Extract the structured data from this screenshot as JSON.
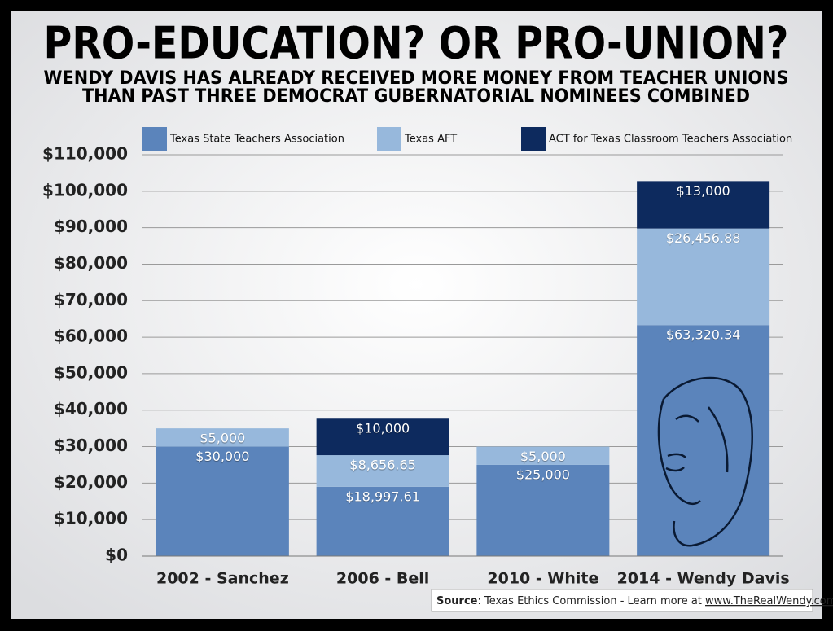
{
  "chart_data": {
    "type": "stacked_bar",
    "title": "PRO-EDUCATION? OR PRO-UNION?",
    "subtitle": [
      "WENDY DAVIS HAS ALREADY RECEIVED MORE MONEY FROM TEACHER UNIONS",
      "THAN PAST THREE DEMOCRAT GUBERNATORIAL NOMINEES COMBINED"
    ],
    "categories": [
      "2002 - Sanchez",
      "2006 - Bell",
      "2010 - White",
      "2014 - Wendy Davis"
    ],
    "series": [
      {
        "name": "Texas State Teachers Association",
        "color": "#5b84bb",
        "values": [
          30000,
          18997.61,
          25000,
          63320.34
        ],
        "value_labels": [
          "$30,000",
          "$18,997.61",
          "$25,000",
          "$63,320.34"
        ]
      },
      {
        "name": "Texas AFT",
        "color": "#97b8dc",
        "values": [
          5000,
          8656.65,
          5000,
          26456.88
        ],
        "value_labels": [
          "$5,000",
          "$8,656.65",
          "$5,000",
          "$26,456.88"
        ]
      },
      {
        "name": "ACT for Texas Classroom Teachers Association",
        "color": "#0d2a5e",
        "values": [
          null,
          10000,
          null,
          13000
        ],
        "value_labels": [
          null,
          "$10,000",
          null,
          "$13,000"
        ]
      }
    ],
    "ylim": [
      0,
      110000
    ],
    "yticks": [
      {
        "value": 0,
        "label": "$0"
      },
      {
        "value": 10000,
        "label": "$10,000"
      },
      {
        "value": 20000,
        "label": "$20,000"
      },
      {
        "value": 30000,
        "label": "$30,000"
      },
      {
        "value": 40000,
        "label": "$40,000"
      },
      {
        "value": 50000,
        "label": "$50,000"
      },
      {
        "value": 60000,
        "label": "$60,000"
      },
      {
        "value": 70000,
        "label": "$70,000"
      },
      {
        "value": 80000,
        "label": "$80,000"
      },
      {
        "value": 90000,
        "label": "$90,000"
      },
      {
        "value": 100000,
        "label": "$100,000"
      },
      {
        "value": 110000,
        "label": "$110,000"
      }
    ],
    "grid": true,
    "legend": "top",
    "source": {
      "label": "Source",
      "text": ": Texas Ethics Commission - Learn more at ",
      "link": "www.TheRealWendy.com"
    }
  }
}
